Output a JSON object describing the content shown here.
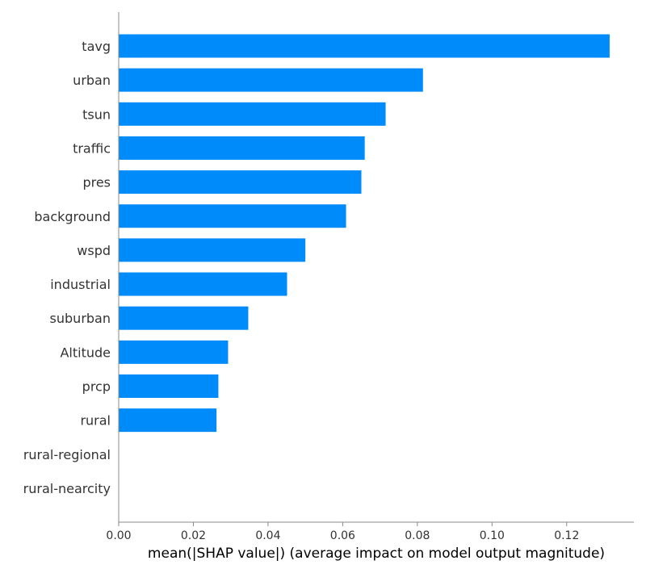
{
  "chart_data": {
    "type": "bar",
    "orientation": "horizontal",
    "categories": [
      "tavg",
      "urban",
      "tsun",
      "traffic",
      "pres",
      "background",
      "wspd",
      "industrial",
      "suburban",
      "Altitude",
      "prcp",
      "rural",
      "rural-regional",
      "rural-nearcity"
    ],
    "values": [
      0.1315,
      0.0815,
      0.0715,
      0.0659,
      0.065,
      0.0609,
      0.05,
      0.0451,
      0.0347,
      0.0293,
      0.0267,
      0.0262,
      0.0,
      0.0
    ],
    "xlabel": "mean(|SHAP value|) (average impact on model output magnitude)",
    "ylabel": "",
    "xlim": [
      0,
      0.138
    ],
    "xticks": [
      "0.00",
      "0.02",
      "0.04",
      "0.06",
      "0.08",
      "0.10",
      "0.12"
    ],
    "bar_color": "#008bfb",
    "grid": false
  }
}
